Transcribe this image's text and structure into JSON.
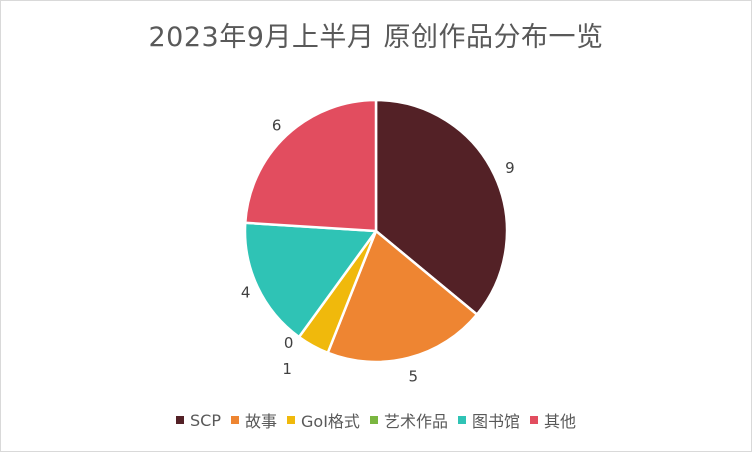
{
  "chart_data": {
    "type": "pie",
    "title": "2023年9月上半月 原创作品分布一览",
    "categories": [
      "SCP",
      "故事",
      "GoI格式",
      "艺术作品",
      "图书馆",
      "其他"
    ],
    "values": [
      9,
      5,
      1,
      0,
      4,
      6
    ],
    "data_labels": [
      "9",
      "5",
      "1",
      "0",
      "4",
      "6"
    ],
    "colors": [
      "#532126",
      "#ee8532",
      "#f0b90c",
      "#7ab640",
      "#2fc3b5",
      "#e24d5f"
    ],
    "legend_position": "bottom",
    "start_angle_deg": 0,
    "direction": "clockwise"
  }
}
